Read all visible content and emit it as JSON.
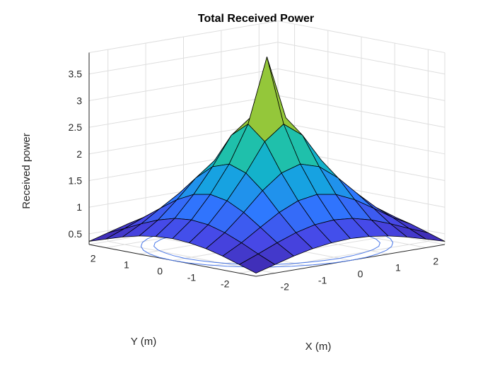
{
  "chart_data": {
    "type": "surface",
    "title": "Total Received Power",
    "xlabel": "X (m)",
    "ylabel": "Y (m)",
    "zlabel": "Received power",
    "x_range": [
      -2.5,
      2.5
    ],
    "y_range": [
      -2.5,
      2.5
    ],
    "z_range": [
      0.3,
      3.9
    ],
    "x_ticks": [
      "-2",
      "-1",
      "0",
      "1",
      "2"
    ],
    "y_ticks": [
      "-2",
      "-1",
      "0",
      "1",
      "2"
    ],
    "z_ticks": [
      "0.5",
      "1",
      "1.5",
      "2",
      "2.5",
      "3",
      "3.5"
    ],
    "grid": true,
    "colormap": "parula",
    "x": [
      -2.5,
      -2.0,
      -1.5,
      -1.0,
      -0.5,
      0.0,
      0.5,
      1.0,
      1.5,
      2.0,
      2.5
    ],
    "y": [
      -2.5,
      -2.0,
      -1.5,
      -1.0,
      -0.5,
      0.0,
      0.5,
      1.0,
      1.5,
      2.0,
      2.5
    ],
    "z": [
      [
        0.36,
        0.46,
        0.56,
        0.64,
        0.69,
        0.71,
        0.69,
        0.64,
        0.56,
        0.46,
        0.36
      ],
      [
        0.46,
        0.6,
        0.75,
        0.88,
        0.97,
        1.0,
        0.97,
        0.88,
        0.75,
        0.6,
        0.46
      ],
      [
        0.56,
        0.75,
        0.98,
        1.2,
        1.36,
        1.42,
        1.36,
        1.2,
        0.98,
        0.75,
        0.56
      ],
      [
        0.64,
        0.88,
        1.2,
        1.55,
        1.82,
        1.93,
        1.82,
        1.55,
        1.2,
        0.88,
        0.64
      ],
      [
        0.69,
        0.97,
        1.36,
        1.82,
        2.35,
        2.62,
        2.35,
        1.82,
        1.36,
        0.97,
        0.69
      ],
      [
        0.71,
        1.0,
        1.42,
        1.93,
        2.62,
        3.82,
        2.62,
        1.93,
        1.42,
        1.0,
        0.71
      ],
      [
        0.69,
        0.97,
        1.36,
        1.82,
        2.35,
        2.62,
        2.35,
        1.82,
        1.36,
        0.97,
        0.69
      ],
      [
        0.64,
        0.88,
        1.2,
        1.55,
        1.82,
        1.93,
        1.82,
        1.55,
        1.2,
        0.88,
        0.64
      ],
      [
        0.56,
        0.75,
        0.98,
        1.2,
        1.36,
        1.42,
        1.36,
        1.2,
        0.98,
        0.75,
        0.56
      ],
      [
        0.46,
        0.6,
        0.75,
        0.88,
        0.97,
        1.0,
        0.97,
        0.88,
        0.75,
        0.6,
        0.46
      ],
      [
        0.36,
        0.46,
        0.56,
        0.64,
        0.69,
        0.71,
        0.69,
        0.64,
        0.56,
        0.46,
        0.36
      ]
    ],
    "contour_levels": [
      0.65,
      0.9
    ]
  }
}
